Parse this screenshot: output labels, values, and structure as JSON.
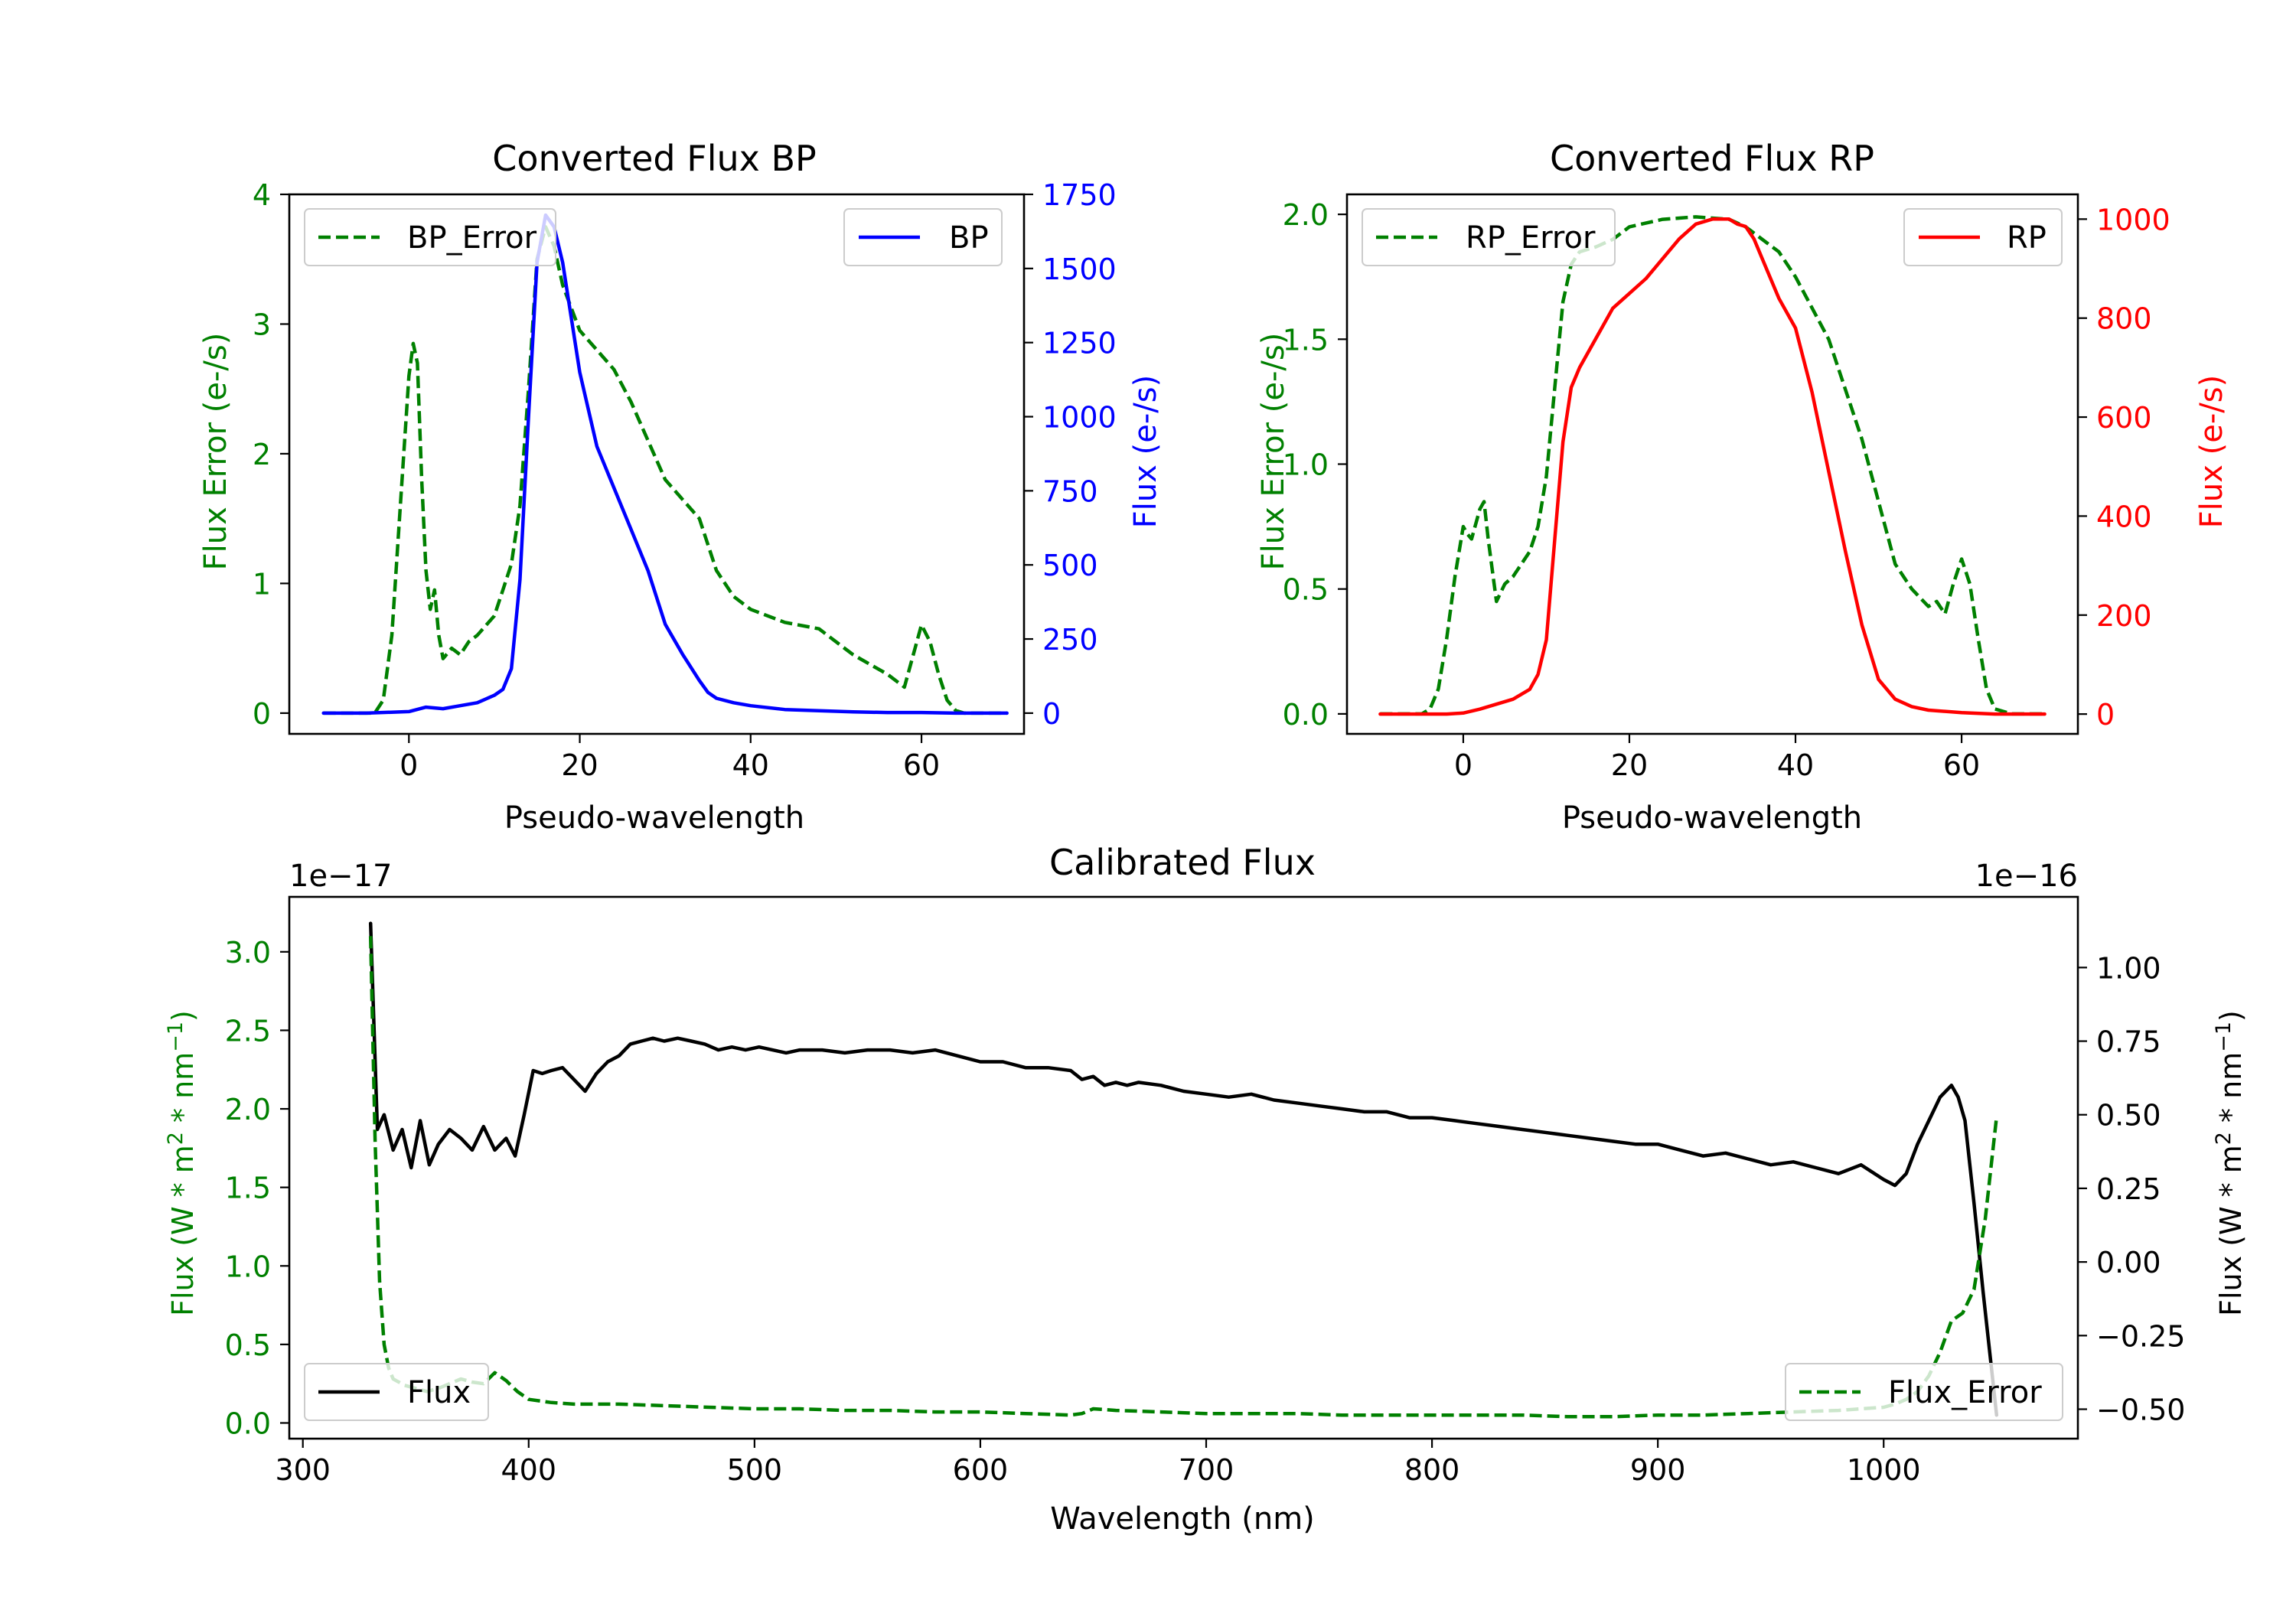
{
  "colors": {
    "green": "#008000",
    "blue": "#0000ff",
    "red": "#ff0000",
    "black": "#000000"
  },
  "chart_data": [
    {
      "id": "bp",
      "type": "line",
      "title": "Converted Flux BP",
      "xlabel": "Pseudo-wavelength",
      "ylabel_left": "Flux Error (e-/s)",
      "ylabel_right": "Flux (e-/s)",
      "xlim": [
        -14,
        72
      ],
      "ylim_left": [
        -0.16,
        4.0
      ],
      "ylim_right": [
        -70,
        1750
      ],
      "x_ticks": [
        0,
        20,
        40,
        60
      ],
      "x_tick_labels": [
        "0",
        "20",
        "40",
        "60"
      ],
      "left_ticks": [
        0,
        1,
        2,
        3,
        4
      ],
      "left_tick_labels": [
        "0",
        "1",
        "2",
        "3",
        "4"
      ],
      "right_ticks": [
        0,
        250,
        500,
        750,
        1000,
        1250,
        1500,
        1750
      ],
      "right_tick_labels": [
        "0",
        "250",
        "500",
        "750",
        "1000",
        "1250",
        "1500",
        "1750"
      ],
      "series": [
        {
          "name": "BP_Error",
          "axis": "left",
          "style": "dashed",
          "color": "#008000",
          "x": [
            -10,
            -4,
            -3,
            -2,
            -1,
            0,
            0.5,
            1,
            1.5,
            2,
            2.5,
            3,
            3.5,
            4,
            5,
            6,
            7,
            8,
            10,
            11,
            12,
            13,
            14,
            15,
            16,
            17,
            18,
            20,
            22,
            24,
            26,
            28,
            30,
            32,
            34,
            36,
            38,
            40,
            44,
            48,
            52,
            56,
            58,
            60,
            61,
            62,
            63,
            64,
            65,
            66,
            70
          ],
          "y": [
            0,
            0,
            0.1,
            0.6,
            1.6,
            2.6,
            2.85,
            2.7,
            1.8,
            1.1,
            0.8,
            0.95,
            0.6,
            0.42,
            0.5,
            0.45,
            0.55,
            0.6,
            0.75,
            0.95,
            1.15,
            1.6,
            2.5,
            3.5,
            3.75,
            3.6,
            3.3,
            2.95,
            2.8,
            2.65,
            2.4,
            2.1,
            1.8,
            1.65,
            1.5,
            1.1,
            0.9,
            0.8,
            0.7,
            0.65,
            0.45,
            0.3,
            0.2,
            0.68,
            0.55,
            0.3,
            0.1,
            0.02,
            0,
            0,
            0
          ]
        },
        {
          "name": "BP",
          "axis": "right",
          "style": "solid",
          "color": "#0000ff",
          "x": [
            -10,
            -5,
            0,
            2,
            4,
            6,
            8,
            10,
            11,
            12,
            13,
            14,
            15,
            16,
            17,
            18,
            20,
            22,
            24,
            26,
            28,
            30,
            32,
            34,
            35,
            36,
            38,
            40,
            44,
            48,
            52,
            56,
            60,
            64,
            70
          ],
          "y": [
            0,
            0,
            5,
            20,
            15,
            25,
            35,
            60,
            80,
            150,
            450,
            1000,
            1520,
            1680,
            1640,
            1520,
            1150,
            900,
            760,
            620,
            480,
            300,
            200,
            110,
            70,
            50,
            35,
            25,
            12,
            8,
            4,
            2,
            2,
            0,
            0
          ]
        }
      ],
      "legend": [
        {
          "label": "BP_Error",
          "position": "upper-left"
        },
        {
          "label": "BP",
          "position": "upper-right"
        }
      ]
    },
    {
      "id": "rp",
      "type": "line",
      "title": "Converted Flux RP",
      "xlabel": "Pseudo-wavelength",
      "ylabel_left": "Flux Error (e-/s)",
      "ylabel_right": "Flux (e-/s)",
      "xlim": [
        -14,
        74
      ],
      "ylim_left": [
        -0.08,
        2.08
      ],
      "ylim_right": [
        -40,
        1050
      ],
      "x_ticks": [
        0,
        20,
        40,
        60
      ],
      "x_tick_labels": [
        "0",
        "20",
        "40",
        "60"
      ],
      "left_ticks": [
        0,
        0.5,
        1,
        1.5,
        2
      ],
      "left_tick_labels": [
        "0.0",
        "0.5",
        "1.0",
        "1.5",
        "2.0"
      ],
      "right_ticks": [
        0,
        200,
        400,
        600,
        800,
        1000
      ],
      "right_tick_labels": [
        "0",
        "200",
        "400",
        "600",
        "800",
        "1000"
      ],
      "series": [
        {
          "name": "RP_Error",
          "axis": "left",
          "style": "dashed",
          "color": "#008000",
          "x": [
            -10,
            -5,
            -4,
            -3,
            -2,
            -1,
            0,
            0.5,
            1,
            2,
            2.5,
            3,
            4,
            5,
            6,
            8,
            9,
            10,
            11,
            12,
            13,
            14,
            16,
            18,
            20,
            24,
            28,
            32,
            34,
            36,
            38,
            40,
            44,
            48,
            52,
            54,
            56,
            57,
            58,
            59,
            60,
            61,
            62,
            63,
            64,
            66,
            70
          ],
          "y": [
            0,
            0,
            0.02,
            0.1,
            0.3,
            0.55,
            0.75,
            0.72,
            0.7,
            0.82,
            0.85,
            0.7,
            0.45,
            0.52,
            0.55,
            0.65,
            0.75,
            0.95,
            1.3,
            1.65,
            1.8,
            1.85,
            1.87,
            1.9,
            1.95,
            1.98,
            1.99,
            1.98,
            1.95,
            1.9,
            1.85,
            1.75,
            1.5,
            1.1,
            0.6,
            0.5,
            0.43,
            0.45,
            0.4,
            0.52,
            0.62,
            0.52,
            0.3,
            0.1,
            0.02,
            0,
            0
          ]
        },
        {
          "name": "RP",
          "axis": "right",
          "style": "solid",
          "color": "#ff0000",
          "x": [
            -10,
            -4,
            -2,
            0,
            2,
            4,
            6,
            8,
            9,
            10,
            11,
            12,
            13,
            14,
            16,
            18,
            20,
            22,
            24,
            26,
            28,
            30,
            32,
            33,
            34,
            35,
            36,
            38,
            40,
            42,
            44,
            46,
            48,
            50,
            52,
            54,
            56,
            60,
            64,
            70
          ],
          "y": [
            0,
            0,
            0,
            2,
            10,
            20,
            30,
            50,
            80,
            150,
            350,
            550,
            660,
            700,
            760,
            820,
            850,
            880,
            920,
            960,
            990,
            1000,
            1000,
            990,
            985,
            960,
            920,
            840,
            780,
            650,
            490,
            330,
            180,
            70,
            30,
            15,
            8,
            3,
            0,
            0
          ]
        }
      ],
      "legend": [
        {
          "label": "RP_Error",
          "position": "upper-left"
        },
        {
          "label": "RP",
          "position": "upper-right"
        }
      ]
    },
    {
      "id": "cal",
      "type": "line",
      "title": "Calibrated Flux",
      "xlabel": "Wavelength (nm)",
      "ylabel_left": "Flux (W * m^2 * nm^-1)",
      "ylabel_right": "Flux (W * m^2 * nm^-1)",
      "left_offset_text": "1e−17",
      "right_offset_text": "1e−16",
      "xlim": [
        294,
        1086
      ],
      "ylim_left": [
        -0.1,
        3.35
      ],
      "ylim_right": [
        -0.6,
        1.24
      ],
      "x_ticks": [
        300,
        400,
        500,
        600,
        700,
        800,
        900,
        1000
      ],
      "x_tick_labels": [
        "300",
        "400",
        "500",
        "600",
        "700",
        "800",
        "900",
        "1000"
      ],
      "left_ticks": [
        0,
        0.5,
        1,
        1.5,
        2,
        2.5,
        3
      ],
      "left_tick_labels": [
        "0.0",
        "0.5",
        "1.0",
        "1.5",
        "2.0",
        "2.5",
        "3.0"
      ],
      "right_ticks": [
        -0.5,
        -0.25,
        0,
        0.25,
        0.5,
        0.75,
        1
      ],
      "right_tick_labels": [
        "−0.50",
        "−0.25",
        "0.00",
        "0.25",
        "0.50",
        "0.75",
        "1.00"
      ],
      "series": [
        {
          "name": "Flux",
          "axis": "right",
          "style": "solid",
          "color": "#000000",
          "x": [
            330,
            333,
            336,
            340,
            344,
            348,
            352,
            356,
            360,
            365,
            370,
            375,
            380,
            385,
            390,
            394,
            398,
            402,
            406,
            410,
            415,
            420,
            425,
            430,
            435,
            440,
            445,
            450,
            455,
            460,
            466,
            472,
            478,
            484,
            490,
            496,
            502,
            508,
            514,
            520,
            530,
            540,
            550,
            560,
            570,
            580,
            590,
            600,
            610,
            620,
            630,
            640,
            645,
            650,
            655,
            660,
            665,
            670,
            680,
            690,
            700,
            710,
            720,
            730,
            740,
            750,
            760,
            770,
            780,
            790,
            800,
            810,
            820,
            830,
            840,
            850,
            860,
            870,
            880,
            890,
            900,
            910,
            920,
            930,
            940,
            950,
            960,
            970,
            980,
            990,
            1000,
            1005,
            1010,
            1015,
            1020,
            1025,
            1030,
            1033,
            1036,
            1040,
            1044,
            1048,
            1050
          ],
          "y": [
            1.15,
            0.45,
            0.5,
            0.38,
            0.45,
            0.32,
            0.48,
            0.33,
            0.4,
            0.45,
            0.42,
            0.38,
            0.46,
            0.38,
            0.42,
            0.36,
            0.5,
            0.65,
            0.64,
            0.65,
            0.66,
            0.62,
            0.58,
            0.64,
            0.68,
            0.7,
            0.74,
            0.75,
            0.76,
            0.75,
            0.76,
            0.75,
            0.74,
            0.72,
            0.73,
            0.72,
            0.73,
            0.72,
            0.71,
            0.72,
            0.72,
            0.71,
            0.72,
            0.72,
            0.71,
            0.72,
            0.7,
            0.68,
            0.68,
            0.66,
            0.66,
            0.65,
            0.62,
            0.63,
            0.6,
            0.61,
            0.6,
            0.61,
            0.6,
            0.58,
            0.57,
            0.56,
            0.57,
            0.55,
            0.54,
            0.53,
            0.52,
            0.51,
            0.51,
            0.49,
            0.49,
            0.48,
            0.47,
            0.46,
            0.45,
            0.44,
            0.43,
            0.42,
            0.41,
            0.4,
            0.4,
            0.38,
            0.36,
            0.37,
            0.35,
            0.33,
            0.34,
            0.32,
            0.3,
            0.33,
            0.28,
            0.26,
            0.3,
            0.4,
            0.48,
            0.56,
            0.6,
            0.56,
            0.48,
            0.2,
            -0.1,
            -0.38,
            -0.52
          ]
        },
        {
          "name": "Flux_Error",
          "axis": "left",
          "style": "dashed",
          "color": "#008000",
          "x": [
            330,
            332,
            334,
            336,
            338,
            340,
            345,
            350,
            355,
            360,
            365,
            370,
            375,
            380,
            385,
            390,
            395,
            400,
            410,
            420,
            440,
            460,
            480,
            500,
            520,
            540,
            560,
            580,
            600,
            620,
            640,
            645,
            650,
            660,
            680,
            700,
            720,
            740,
            760,
            780,
            800,
            820,
            840,
            860,
            880,
            900,
            920,
            940,
            960,
            980,
            990,
            1000,
            1005,
            1010,
            1015,
            1020,
            1025,
            1030,
            1035,
            1040,
            1045,
            1050
          ],
          "y": [
            3.1,
            1.8,
            0.9,
            0.5,
            0.35,
            0.28,
            0.24,
            0.22,
            0.2,
            0.22,
            0.25,
            0.28,
            0.26,
            0.25,
            0.32,
            0.27,
            0.2,
            0.15,
            0.13,
            0.12,
            0.12,
            0.11,
            0.1,
            0.09,
            0.09,
            0.08,
            0.08,
            0.07,
            0.07,
            0.06,
            0.05,
            0.06,
            0.09,
            0.08,
            0.07,
            0.06,
            0.06,
            0.06,
            0.05,
            0.05,
            0.05,
            0.05,
            0.05,
            0.04,
            0.04,
            0.05,
            0.05,
            0.06,
            0.07,
            0.08,
            0.09,
            0.1,
            0.12,
            0.15,
            0.2,
            0.3,
            0.45,
            0.65,
            0.7,
            0.85,
            1.3,
            1.95
          ]
        }
      ],
      "legend": [
        {
          "label": "Flux",
          "position": "lower-left"
        },
        {
          "label": "Flux_Error",
          "position": "lower-right"
        }
      ]
    }
  ]
}
